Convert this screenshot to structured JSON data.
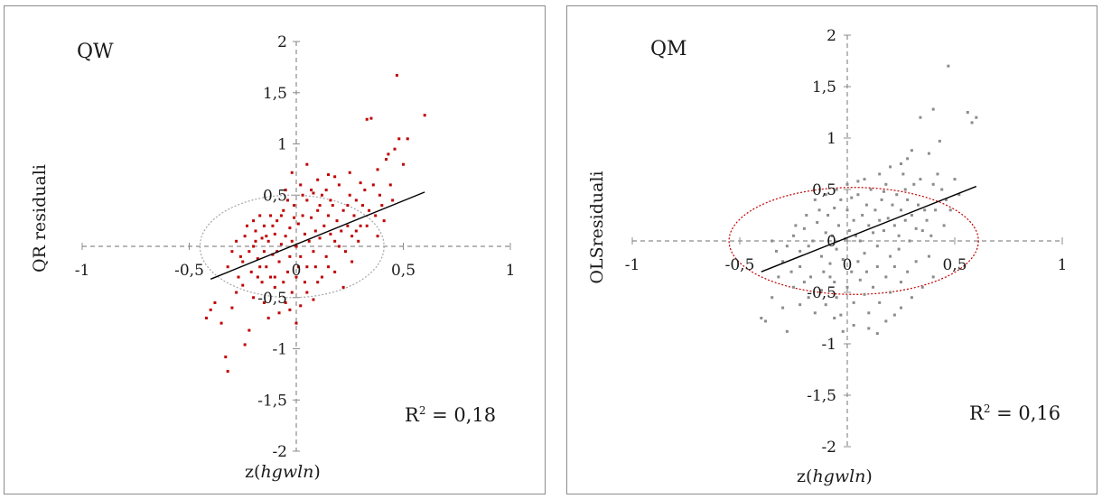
{
  "chart_data": [
    {
      "type": "scatter",
      "title": "QW",
      "xlabel": "z(",
      "xlabel_italic": "hgwln",
      "xlabel_close": ")",
      "ylabel": "QR residuali",
      "annotation": "R² = 0,18",
      "annotation_base": "R",
      "annotation_sup": "2",
      "annotation_rest": " = 0,18",
      "xlim": [
        -1,
        1
      ],
      "ylim": [
        -2,
        2
      ],
      "x_ticks": [
        {
          "value": -1,
          "label": "-1"
        },
        {
          "value": -0.5,
          "label": "-0,5"
        },
        {
          "value": 0,
          "label": "0"
        },
        {
          "value": 0.5,
          "label": "0,5"
        },
        {
          "value": 1,
          "label": "1"
        }
      ],
      "y_ticks": [
        {
          "value": 2,
          "label": "2"
        },
        {
          "value": 1.5,
          "label": "1,5"
        },
        {
          "value": 1,
          "label": "1"
        },
        {
          "value": 0.5,
          "label": "0,5"
        },
        {
          "value": -0.5,
          "label": "-0,5"
        },
        {
          "value": -1,
          "label": "-1"
        },
        {
          "value": -1.5,
          "label": "-1,5"
        },
        {
          "value": -2,
          "label": "-2"
        }
      ],
      "point_color": "#c00000",
      "ellipse_color": "#a6a6a6",
      "ellipse": {
        "cx": -0.02,
        "cy": 0.0,
        "rx": 0.43,
        "ry": 0.5
      },
      "trendline": {
        "x": [
          -0.4,
          0.6
        ],
        "y": [
          -0.32,
          0.53
        ]
      },
      "points": [
        [
          -0.42,
          -0.7
        ],
        [
          -0.4,
          -0.62
        ],
        [
          -0.38,
          -0.55
        ],
        [
          -0.35,
          -0.75
        ],
        [
          -0.33,
          -1.08
        ],
        [
          -0.32,
          -1.22
        ],
        [
          -0.3,
          -0.6
        ],
        [
          -0.28,
          -0.45
        ],
        [
          -0.25,
          -0.38
        ],
        [
          -0.24,
          -0.96
        ],
        [
          -0.22,
          -0.82
        ],
        [
          -0.2,
          -0.5
        ],
        [
          -0.18,
          -0.3
        ],
        [
          -0.15,
          -0.55
        ],
        [
          -0.13,
          -0.7
        ],
        [
          -0.1,
          -0.4
        ],
        [
          -0.08,
          -0.65
        ],
        [
          -0.05,
          -0.55
        ],
        [
          -0.03,
          -0.62
        ],
        [
          0.0,
          -0.75
        ],
        [
          0.02,
          -0.58
        ],
        [
          0.05,
          -0.45
        ],
        [
          0.08,
          -0.52
        ],
        [
          0.1,
          -0.35
        ],
        [
          -0.28,
          0.05
        ],
        [
          -0.26,
          -0.1
        ],
        [
          -0.24,
          0.1
        ],
        [
          -0.22,
          -0.05
        ],
        [
          -0.2,
          0.0
        ],
        [
          -0.19,
          0.15
        ],
        [
          -0.18,
          -0.12
        ],
        [
          -0.16,
          0.08
        ],
        [
          -0.15,
          0.2
        ],
        [
          -0.14,
          -0.2
        ],
        [
          -0.13,
          0.05
        ],
        [
          -0.12,
          0.3
        ],
        [
          -0.11,
          -0.08
        ],
        [
          -0.1,
          0.12
        ],
        [
          -0.09,
          0.25
        ],
        [
          -0.08,
          -0.15
        ],
        [
          -0.07,
          0.02
        ],
        [
          -0.06,
          0.35
        ],
        [
          -0.05,
          0.1
        ],
        [
          -0.04,
          -0.25
        ],
        [
          -0.03,
          0.18
        ],
        [
          -0.02,
          0.05
        ],
        [
          -0.01,
          0.4
        ],
        [
          0.0,
          0.0
        ],
        [
          0.01,
          0.22
        ],
        [
          0.02,
          -0.1
        ],
        [
          0.03,
          0.3
        ],
        [
          0.04,
          0.12
        ],
        [
          0.05,
          0.45
        ],
        [
          0.06,
          0.05
        ],
        [
          0.07,
          0.28
        ],
        [
          0.08,
          -0.05
        ],
        [
          0.09,
          0.15
        ],
        [
          0.1,
          0.35
        ],
        [
          0.11,
          0.08
        ],
        [
          0.12,
          0.5
        ],
        [
          0.13,
          0.2
        ],
        [
          0.14,
          -0.1
        ],
        [
          0.15,
          0.3
        ],
        [
          0.16,
          0.12
        ],
        [
          0.17,
          0.4
        ],
        [
          0.18,
          0.05
        ],
        [
          0.19,
          0.25
        ],
        [
          0.2,
          0.6
        ],
        [
          0.21,
          0.15
        ],
        [
          0.22,
          0.35
        ],
        [
          0.23,
          -0.05
        ],
        [
          0.24,
          0.2
        ],
        [
          0.25,
          0.5
        ],
        [
          0.26,
          0.1
        ],
        [
          0.27,
          0.3
        ],
        [
          0.28,
          0.45
        ],
        [
          0.3,
          0.2
        ],
        [
          0.32,
          0.55
        ],
        [
          0.34,
          0.35
        ],
        [
          0.36,
          0.6
        ],
        [
          0.38,
          0.75
        ],
        [
          0.4,
          0.4
        ],
        [
          0.42,
          0.85
        ],
        [
          0.44,
          0.6
        ],
        [
          0.46,
          0.95
        ],
        [
          0.48,
          1.05
        ],
        [
          0.5,
          0.8
        ],
        [
          0.52,
          1.05
        ],
        [
          0.35,
          1.25
        ],
        [
          0.33,
          1.24
        ],
        [
          0.47,
          1.67
        ],
        [
          0.6,
          1.28
        ],
        [
          0.43,
          0.9
        ],
        [
          0.15,
          0.7
        ],
        [
          0.1,
          0.65
        ],
        [
          0.05,
          0.8
        ],
        [
          0.02,
          0.6
        ],
        [
          -0.02,
          0.72
        ],
        [
          -0.05,
          0.55
        ],
        [
          0.08,
          0.52
        ],
        [
          0.18,
          0.68
        ],
        [
          0.25,
          0.72
        ],
        [
          0.3,
          0.62
        ],
        [
          0.12,
          -0.3
        ],
        [
          0.18,
          -0.25
        ],
        [
          0.22,
          -0.4
        ],
        [
          0.0,
          -0.3
        ],
        [
          -0.06,
          -0.35
        ],
        [
          -0.1,
          -0.3
        ],
        [
          0.05,
          -0.2
        ],
        [
          -0.02,
          -0.45
        ],
        [
          0.15,
          -0.2
        ],
        [
          -0.32,
          -0.2
        ],
        [
          -0.3,
          -0.05
        ],
        [
          -0.27,
          -0.3
        ],
        [
          -0.25,
          -0.15
        ],
        [
          -0.23,
          0.2
        ],
        [
          -0.21,
          -0.25
        ],
        [
          -0.17,
          0.3
        ],
        [
          -0.16,
          -0.35
        ],
        [
          0.28,
          0.15
        ],
        [
          0.26,
          -0.15
        ],
        [
          0.24,
          0.4
        ],
        [
          0.2,
          0.0
        ],
        [
          0.16,
          0.45
        ],
        [
          0.14,
          0.55
        ],
        [
          0.11,
          0.4
        ],
        [
          0.09,
          -0.2
        ],
        [
          0.07,
          0.55
        ],
        [
          0.04,
          -0.35
        ],
        [
          0.03,
          0.5
        ],
        [
          0.01,
          -0.2
        ],
        [
          -0.01,
          0.28
        ],
        [
          -0.03,
          -0.1
        ],
        [
          -0.04,
          0.45
        ],
        [
          -0.07,
          0.3
        ],
        [
          -0.09,
          -0.05
        ],
        [
          -0.11,
          0.2
        ],
        [
          -0.12,
          -0.3
        ],
        [
          -0.14,
          0.1
        ],
        [
          -0.15,
          -0.05
        ],
        [
          -0.17,
          -0.2
        ],
        [
          -0.19,
          0.05
        ],
        [
          -0.2,
          0.25
        ],
        [
          0.31,
          0.4
        ],
        [
          0.29,
          0.05
        ],
        [
          0.33,
          0.2
        ],
        [
          0.37,
          0.3
        ],
        [
          0.39,
          0.5
        ],
        [
          0.41,
          0.25
        ],
        [
          0.45,
          0.45
        ],
        [
          0.38,
          0.1
        ]
      ]
    },
    {
      "type": "scatter",
      "title": "QM",
      "xlabel": "z(",
      "xlabel_italic": "hgwln",
      "xlabel_close": ")",
      "ylabel": "OLSresiduali",
      "annotation": "R² = 0,16",
      "annotation_base": "R",
      "annotation_sup": "2",
      "annotation_rest": " = 0,16",
      "xlim": [
        -1,
        1
      ],
      "ylim": [
        -2,
        2
      ],
      "x_ticks": [
        {
          "value": -1,
          "label": "-1"
        },
        {
          "value": -0.5,
          "label": "-0,5"
        },
        {
          "value": 0,
          "label": "0"
        },
        {
          "value": 0.5,
          "label": "0,5"
        },
        {
          "value": 1,
          "label": "1"
        }
      ],
      "y_ticks": [
        {
          "value": 2,
          "label": "2"
        },
        {
          "value": 1.5,
          "label": "1,5"
        },
        {
          "value": 1,
          "label": "1"
        },
        {
          "value": 0.5,
          "label": "0,5"
        },
        {
          "value": 0,
          "label": "0"
        },
        {
          "value": -0.5,
          "label": "-0,5"
        },
        {
          "value": -1,
          "label": "-1"
        },
        {
          "value": -1.5,
          "label": "-1,5"
        },
        {
          "value": -2,
          "label": "-2"
        }
      ],
      "point_color": "#8c8c8c",
      "ellipse_color": "#c00000",
      "ellipse": {
        "cx": 0.03,
        "cy": 0.0,
        "rx": 0.58,
        "ry": 0.52
      },
      "trendline": {
        "x": [
          -0.4,
          0.6
        ],
        "y": [
          -0.3,
          0.53
        ]
      },
      "points": [
        [
          -0.4,
          -0.75
        ],
        [
          -0.38,
          -0.78
        ],
        [
          -0.35,
          -0.55
        ],
        [
          -0.3,
          -0.65
        ],
        [
          -0.28,
          -0.88
        ],
        [
          -0.25,
          -0.45
        ],
        [
          -0.22,
          -0.62
        ],
        [
          -0.2,
          -0.4
        ],
        [
          -0.18,
          -0.55
        ],
        [
          -0.15,
          -0.7
        ],
        [
          -0.12,
          -0.48
        ],
        [
          -0.1,
          -0.62
        ],
        [
          -0.08,
          -0.35
        ],
        [
          -0.05,
          -0.55
        ],
        [
          -0.03,
          -0.72
        ],
        [
          0.0,
          -0.45
        ],
        [
          0.03,
          -0.6
        ],
        [
          0.06,
          -0.38
        ],
        [
          0.08,
          -0.52
        ],
        [
          0.1,
          -0.7
        ],
        [
          0.12,
          -0.45
        ],
        [
          0.15,
          -0.6
        ],
        [
          0.18,
          -0.35
        ],
        [
          0.2,
          -0.5
        ],
        [
          -0.25,
          0.05
        ],
        [
          -0.22,
          -0.1
        ],
        [
          -0.2,
          0.12
        ],
        [
          -0.18,
          -0.05
        ],
        [
          -0.16,
          0.0
        ],
        [
          -0.14,
          0.18
        ],
        [
          -0.12,
          -0.15
        ],
        [
          -0.1,
          0.08
        ],
        [
          -0.09,
          0.25
        ],
        [
          -0.08,
          -0.22
        ],
        [
          -0.07,
          0.05
        ],
        [
          -0.06,
          0.32
        ],
        [
          -0.05,
          -0.08
        ],
        [
          -0.04,
          0.15
        ],
        [
          -0.03,
          0.4
        ],
        [
          -0.02,
          -0.18
        ],
        [
          -0.01,
          0.02
        ],
        [
          0.0,
          0.3
        ],
        [
          0.01,
          0.1
        ],
        [
          0.02,
          -0.3
        ],
        [
          0.03,
          0.2
        ],
        [
          0.04,
          0.05
        ],
        [
          0.05,
          0.45
        ],
        [
          0.06,
          0.0
        ],
        [
          0.07,
          0.25
        ],
        [
          0.08,
          -0.12
        ],
        [
          0.09,
          0.35
        ],
        [
          0.1,
          0.15
        ],
        [
          0.11,
          0.5
        ],
        [
          0.12,
          0.08
        ],
        [
          0.13,
          0.3
        ],
        [
          0.14,
          -0.05
        ],
        [
          0.15,
          0.2
        ],
        [
          0.16,
          0.4
        ],
        [
          0.17,
          0.1
        ],
        [
          0.18,
          0.55
        ],
        [
          0.19,
          0.22
        ],
        [
          0.2,
          -0.15
        ],
        [
          0.21,
          0.35
        ],
        [
          0.22,
          0.15
        ],
        [
          0.23,
          0.45
        ],
        [
          0.24,
          0.05
        ],
        [
          0.25,
          0.3
        ],
        [
          0.26,
          0.65
        ],
        [
          0.27,
          0.2
        ],
        [
          0.28,
          0.4
        ],
        [
          0.29,
          0.0
        ],
        [
          0.3,
          0.25
        ],
        [
          0.31,
          0.55
        ],
        [
          0.32,
          0.12
        ],
        [
          0.33,
          0.35
        ],
        [
          0.34,
          0.6
        ],
        [
          0.36,
          0.3
        ],
        [
          0.38,
          0.85
        ],
        [
          0.4,
          0.55
        ],
        [
          0.42,
          0.65
        ],
        [
          0.44,
          0.5
        ],
        [
          0.46,
          0.4
        ],
        [
          0.48,
          0.3
        ],
        [
          0.5,
          0.6
        ],
        [
          0.34,
          1.2
        ],
        [
          0.4,
          1.28
        ],
        [
          0.47,
          1.7
        ],
        [
          0.56,
          1.25
        ],
        [
          0.58,
          1.15
        ],
        [
          0.6,
          1.2
        ],
        [
          0.43,
          0.97
        ],
        [
          0.3,
          0.88
        ],
        [
          0.28,
          0.8
        ],
        [
          0.25,
          0.75
        ],
        [
          0.2,
          0.72
        ],
        [
          0.15,
          0.65
        ],
        [
          0.08,
          0.6
        ],
        [
          0.05,
          0.58
        ],
        [
          0.0,
          0.55
        ],
        [
          -0.05,
          0.5
        ],
        [
          -0.1,
          0.45
        ],
        [
          -0.15,
          0.4
        ],
        [
          0.22,
          -0.25
        ],
        [
          0.25,
          -0.4
        ],
        [
          0.28,
          -0.3
        ],
        [
          0.3,
          -0.55
        ],
        [
          0.32,
          -0.2
        ],
        [
          0.35,
          -0.45
        ],
        [
          0.38,
          -0.15
        ],
        [
          0.4,
          -0.35
        ],
        [
          0.14,
          -0.25
        ],
        [
          0.05,
          -0.2
        ],
        [
          -0.3,
          -0.2
        ],
        [
          -0.28,
          -0.05
        ],
        [
          -0.26,
          -0.3
        ],
        [
          -0.24,
          0.15
        ],
        [
          -0.22,
          -0.25
        ],
        [
          -0.19,
          0.25
        ],
        [
          -0.17,
          -0.35
        ],
        [
          -0.13,
          0.3
        ],
        [
          -0.33,
          -0.1
        ],
        [
          -0.35,
          0.0
        ],
        [
          -0.32,
          -0.35
        ],
        [
          -0.11,
          -0.3
        ],
        [
          -0.06,
          -0.4
        ],
        [
          0.02,
          0.42
        ],
        [
          0.09,
          -0.3
        ],
        [
          0.17,
          0.48
        ],
        [
          0.24,
          -0.08
        ],
        [
          0.27,
          0.5
        ],
        [
          0.35,
          0.1
        ],
        [
          0.37,
          0.2
        ],
        [
          0.39,
          0.05
        ],
        [
          0.41,
          0.3
        ],
        [
          0.45,
          0.15
        ],
        [
          0.52,
          0.45
        ],
        [
          0.03,
          -0.82
        ],
        [
          0.1,
          -0.85
        ],
        [
          0.18,
          -0.78
        ],
        [
          0.25,
          -0.65
        ],
        [
          -0.02,
          -0.88
        ],
        [
          -0.06,
          -0.75
        ],
        [
          0.14,
          -0.9
        ],
        [
          0.22,
          -0.72
        ]
      ]
    }
  ]
}
